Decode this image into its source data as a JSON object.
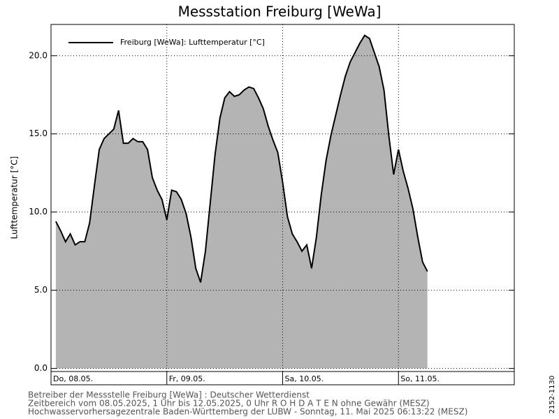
{
  "chart_data": {
    "type": "area",
    "title": "Messstation Freiburg [WeWa]",
    "y_label": "Lufttemperatur [°C]",
    "categories": [
      "Do, 08.05.",
      null,
      null,
      null,
      null,
      null,
      null,
      null,
      null,
      null,
      null,
      null,
      null,
      null,
      null,
      null,
      null,
      null,
      null,
      null,
      null,
      null,
      null,
      null,
      "Fr, 09.05.",
      null,
      null,
      null,
      null,
      null,
      null,
      null,
      null,
      null,
      null,
      null,
      null,
      null,
      null,
      null,
      null,
      null,
      null,
      null,
      null,
      null,
      null,
      null,
      "Sa, 10.05.",
      null,
      null,
      null,
      null,
      null,
      null,
      null,
      null,
      null,
      null,
      null,
      null,
      null,
      null,
      null,
      null,
      null,
      null,
      null,
      null,
      null,
      null,
      null,
      "So, 11.05.",
      null,
      null,
      null,
      null,
      null,
      null,
      null,
      null,
      null,
      null,
      null,
      null,
      null,
      null,
      null,
      null,
      null,
      null,
      null,
      null,
      null,
      null,
      null,
      null
    ],
    "series": [
      {
        "name": "Freiburg [WeWa]: Lufttemperatur  [°C]",
        "color": "#000000",
        "fill": "#b4b4b4",
        "values": [
          null,
          9.4,
          8.8,
          8.1,
          8.6,
          7.9,
          8.1,
          8.1,
          9.3,
          11.7,
          14.0,
          14.7,
          15.0,
          15.3,
          16.5,
          14.4,
          14.4,
          14.7,
          14.5,
          14.5,
          14.0,
          12.2,
          11.4,
          10.8,
          9.5,
          11.4,
          11.3,
          10.8,
          9.9,
          8.4,
          6.4,
          5.5,
          7.5,
          10.6,
          13.7,
          16.0,
          17.3,
          17.7,
          17.4,
          17.5,
          17.8,
          18.0,
          17.9,
          17.3,
          16.6,
          15.5,
          14.6,
          13.8,
          11.9,
          9.7,
          8.6,
          8.1,
          7.5,
          7.9,
          6.4,
          8.4,
          11.1,
          13.3,
          14.9,
          16.2,
          17.5,
          18.7,
          19.6,
          20.2,
          20.8,
          21.3,
          21.1,
          20.2,
          19.3,
          17.8,
          14.9,
          12.4,
          14.0,
          12.6,
          11.5,
          10.2,
          8.4,
          6.8,
          6.2,
          null,
          null,
          null,
          null,
          null,
          null,
          null,
          null,
          null,
          null,
          null,
          null,
          null,
          null,
          null,
          null,
          null,
          null
        ]
      }
    ],
    "ylim": [
      -0.2,
      22
    ],
    "yticks": [
      {
        "value": 0,
        "label": "0.0"
      },
      {
        "value": 5,
        "label": "5.0"
      },
      {
        "value": 10,
        "label": "10.0"
      },
      {
        "value": 15,
        "label": "15.0"
      },
      {
        "value": 20,
        "label": "20.0"
      }
    ],
    "grid": true,
    "legend": "top-left",
    "footer": [
      "Betreiber der Messstelle Freiburg [WeWa] : Deutscher Wetterdienst",
      "Zeitbereich vom 08.05.2025, 1 Uhr bis 12.05.2025, 0 Uhr   R O H D A T E N ohne Gewähr (MESZ)",
      "Hochwasservorhersagezentrale Baden-Württemberg der LUBW - Sonntag, 11. Mai 2025 06:13:22 (MESZ)"
    ],
    "side_label": "2152-1130"
  }
}
